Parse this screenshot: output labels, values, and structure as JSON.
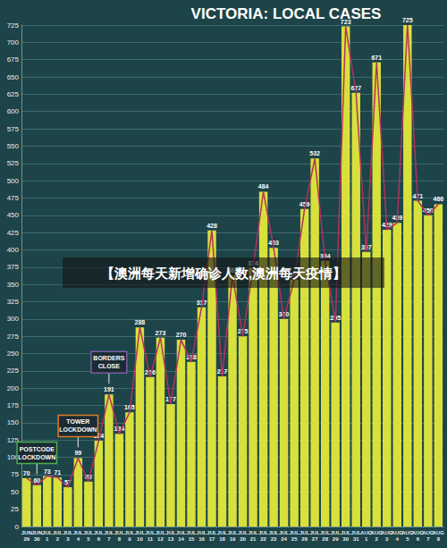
{
  "chart_data": {
    "type": "bar",
    "title": "VICTORIA: LOCAL CASES",
    "subtitle": "【澳洲每天新增确诊人数,澳洲每天疫情】",
    "categories": [
      "JUN 29",
      "JUN 30",
      "JUL 1",
      "JUL 2",
      "JUL 3",
      "JUL 4",
      "JUL 5",
      "JUL 6",
      "JUL 7",
      "JUL 8",
      "JUL 9",
      "JUL 10",
      "JUL 11",
      "JUL 12",
      "JUL 13",
      "JUL 14",
      "JUL 15",
      "JUL 16",
      "JUL 17",
      "JUL 18",
      "JUL 19",
      "JUL 20",
      "JUL 21",
      "JUL 22",
      "JUL 23",
      "JUL 24",
      "JUL 25",
      "JUL 26",
      "JUL 27",
      "JUL 28",
      "JUL 29",
      "JUL 30",
      "JUL 31",
      "AUG 1",
      "AUG 2",
      "AUG 3",
      "AUG 4",
      "AUG 5",
      "AUG 6",
      "AUG 7",
      "AUG 8"
    ],
    "series": [
      {
        "type": "bar",
        "color": "#d8e03c",
        "values": [
          70,
          60,
          73,
          71,
          57,
          99,
          65,
          124,
          191,
          134,
          165,
          288,
          216,
          273,
          177,
          270,
          238,
          317,
          428,
          217,
          363,
          275,
          374,
          484,
          403,
          300,
          357,
          459,
          532,
          384,
          295,
          723,
          627,
          397,
          671,
          429,
          439,
          725,
          471,
          450,
          466
        ]
      },
      {
        "type": "line",
        "color": "#b3325e",
        "values": [
          70,
          60,
          73,
          71,
          57,
          99,
          65,
          124,
          191,
          134,
          165,
          288,
          216,
          273,
          177,
          270,
          238,
          317,
          428,
          217,
          363,
          275,
          374,
          484,
          403,
          300,
          357,
          459,
          532,
          384,
          295,
          723,
          627,
          397,
          671,
          429,
          439,
          725,
          471,
          450,
          466
        ]
      }
    ],
    "annotations": [
      {
        "text": "POSTCODE LOCKDOWN",
        "category": "JUN 30"
      },
      {
        "text": "TOWER LOCKDOWN",
        "category": "JUL 4"
      },
      {
        "text": "BORDERS CLOSE",
        "category": "JUL 7"
      }
    ],
    "ylim": [
      0,
      725
    ],
    "yticks": [
      0,
      25,
      50,
      75,
      100,
      125,
      150,
      175,
      200,
      225,
      250,
      275,
      300,
      325,
      350,
      375,
      400,
      425,
      450,
      475,
      500,
      525,
      550,
      575,
      600,
      625,
      650,
      675,
      700,
      725
    ],
    "grid": true,
    "data_labels": true
  }
}
